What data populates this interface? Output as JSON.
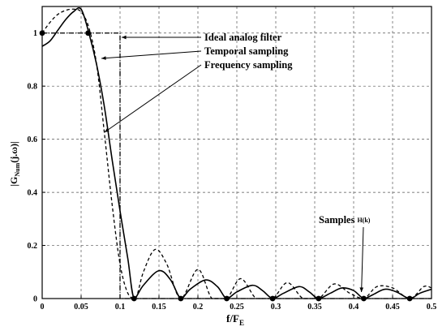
{
  "chart_data": {
    "type": "line",
    "xlabel_main": "f/F",
    "xlabel_sub": "E",
    "ylabel_main": "|G",
    "ylabel_sub": "Num",
    "ylabel_rest": "(j.ω)|",
    "xlim": [
      0,
      0.5
    ],
    "ylim": [
      0,
      1.1
    ],
    "grid": true,
    "x_ticks": [
      "0",
      "0.05",
      "0.1",
      "0.15",
      "0.2",
      "0.25",
      "0.3",
      "0.35",
      "0.4",
      "0.45",
      "0.5"
    ],
    "y_ticks": [
      "0",
      "0.2",
      "0.4",
      "0.6",
      "0.8",
      "1"
    ],
    "annotations": {
      "ideal": "Ideal analog filter",
      "temporal": "Temporal sampling",
      "frequency": "Frequency sampling",
      "samples": "Samples",
      "samples_sub": "H(k)"
    },
    "series": [
      {
        "name": "Ideal analog filter",
        "style": "dash-dot",
        "x": [
          0,
          0.1,
          0.1,
          0.5
        ],
        "y": [
          1,
          1,
          0,
          0
        ]
      },
      {
        "name": "Temporal sampling",
        "style": "solid",
        "x": [
          0,
          0.01,
          0.02,
          0.03,
          0.04,
          0.05,
          0.06,
          0.07,
          0.08,
          0.09,
          0.1,
          0.11,
          0.118,
          0.13,
          0.15,
          0.165,
          0.178,
          0.19,
          0.21,
          0.225,
          0.237,
          0.25,
          0.27,
          0.283,
          0.296,
          0.31,
          0.33,
          0.343,
          0.355,
          0.37,
          0.385,
          0.4,
          0.413,
          0.425,
          0.44,
          0.455,
          0.472,
          0.485,
          0.5
        ],
        "y": [
          0.95,
          0.97,
          1.01,
          1.05,
          1.08,
          1.09,
          1.0,
          0.88,
          0.72,
          0.52,
          0.33,
          0.15,
          0.0,
          0.05,
          0.105,
          0.07,
          0.0,
          0.035,
          0.07,
          0.045,
          0.0,
          0.025,
          0.05,
          0.03,
          0.0,
          0.02,
          0.045,
          0.025,
          0.0,
          0.02,
          0.04,
          0.03,
          0.0,
          0.015,
          0.035,
          0.025,
          0.0,
          0.02,
          0.035
        ]
      },
      {
        "name": "Frequency sampling",
        "style": "dashed",
        "x": [
          0,
          0.01,
          0.02,
          0.03,
          0.04,
          0.05,
          0.06,
          0.07,
          0.08,
          0.09,
          0.1,
          0.11,
          0.12,
          0.13,
          0.145,
          0.16,
          0.178,
          0.2,
          0.218,
          0.237,
          0.255,
          0.275,
          0.296,
          0.315,
          0.335,
          0.355,
          0.375,
          0.395,
          0.413,
          0.43,
          0.45,
          0.472,
          0.49,
          0.5
        ],
        "y": [
          1.0,
          1.04,
          1.07,
          1.085,
          1.09,
          1.08,
          1.02,
          0.88,
          0.62,
          0.35,
          0.13,
          0.02,
          0.0,
          0.1,
          0.185,
          0.13,
          0.0,
          0.11,
          0.0,
          0.0,
          0.075,
          0.0,
          0.0,
          0.06,
          0.0,
          0.0,
          0.055,
          0.02,
          0.0,
          0.045,
          0.04,
          0.0,
          0.045,
          0.04
        ]
      },
      {
        "name": "Samples",
        "style": "markers",
        "x": [
          0,
          0.059,
          0.118,
          0.178,
          0.237,
          0.296,
          0.355,
          0.413,
          0.472
        ],
        "y": [
          1,
          1,
          0,
          0,
          0,
          0,
          0,
          0,
          0
        ]
      }
    ]
  }
}
